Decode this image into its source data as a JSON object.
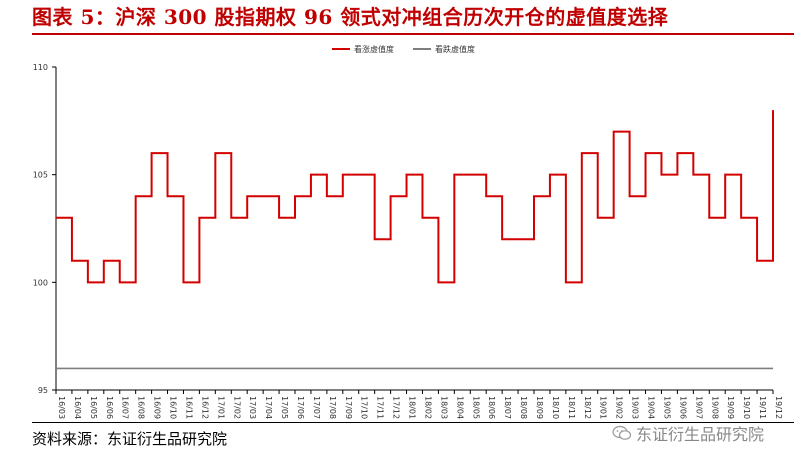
{
  "title": "图表 5：沪深 300 股指期权 96 领式对冲组合历次开仓的虚值度选择",
  "source": "资料来源：东证衍生品研究院",
  "watermark": "东证衍生品研究院",
  "colors": {
    "accent": "#c00000",
    "series_up": "#d40000",
    "series_down": "#7f7f7f"
  },
  "chart_data": {
    "type": "line",
    "title": "",
    "xlabel": "",
    "ylabel": "",
    "ylim": [
      95,
      110
    ],
    "yticks": [
      95,
      100,
      105,
      110
    ],
    "legend_position": "top-center",
    "grid": false,
    "x": [
      "16/03",
      "16/04",
      "16/05",
      "16/06",
      "16/07",
      "16/08",
      "16/09",
      "16/10",
      "16/11",
      "16/12",
      "17/01",
      "17/02",
      "17/03",
      "17/04",
      "17/05",
      "17/06",
      "17/07",
      "17/08",
      "17/09",
      "17/10",
      "17/11",
      "17/12",
      "18/01",
      "18/02",
      "18/03",
      "18/04",
      "18/05",
      "18/06",
      "18/07",
      "18/08",
      "18/09",
      "18/10",
      "18/11",
      "18/12",
      "19/01",
      "19/02",
      "19/03",
      "19/04",
      "19/05",
      "19/06",
      "19/07",
      "19/08",
      "19/09",
      "19/10",
      "19/11",
      "19/12"
    ],
    "series": [
      {
        "name": "看涨虚值度",
        "style": "step",
        "values": [
          103,
          101,
          100,
          101,
          100,
          104,
          106,
          104,
          100,
          103,
          106,
          103,
          104,
          104,
          103,
          104,
          105,
          104,
          105,
          105,
          102,
          104,
          105,
          103,
          100,
          105,
          105,
          104,
          102,
          102,
          104,
          105,
          100,
          106,
          103,
          107,
          104,
          106,
          105,
          106,
          105,
          103,
          105,
          103,
          101,
          108
        ]
      },
      {
        "name": "看跌虚值度",
        "style": "line",
        "values": [
          96,
          96,
          96,
          96,
          96,
          96,
          96,
          96,
          96,
          96,
          96,
          96,
          96,
          96,
          96,
          96,
          96,
          96,
          96,
          96,
          96,
          96,
          96,
          96,
          96,
          96,
          96,
          96,
          96,
          96,
          96,
          96,
          96,
          96,
          96,
          96,
          96,
          96,
          96,
          96,
          96,
          96,
          96,
          96,
          96,
          96
        ]
      }
    ]
  }
}
